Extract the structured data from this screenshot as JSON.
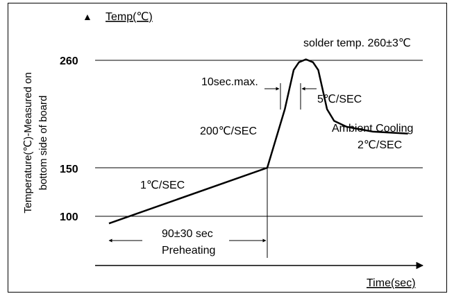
{
  "chart_data": {
    "type": "line",
    "title": "",
    "y_axis": {
      "label": "Temp(℃)",
      "side_label_line1": "Temperature(℃)-Measured on",
      "side_label_line2": "bottom side of board",
      "ticks": [
        100,
        150,
        260
      ]
    },
    "x_axis": {
      "label": "Time(sec)"
    },
    "annotations": {
      "solder_temp": "solder temp. 260±3℃",
      "peak_duration": "10sec.max.",
      "ramp_up": "200℃/SEC",
      "ramp_down": "5℃/SEC",
      "cooling_line1": "Ambient Cooling",
      "cooling_line2": "2℃/SEC",
      "preheat_rate": "1℃/SEC",
      "preheat_time": "90±30 sec",
      "preheat_label": "Preheating"
    },
    "series": [
      {
        "points": [
          {
            "t": 0,
            "temp": 93
          },
          {
            "t": 90,
            "temp": 150
          },
          {
            "t": 100,
            "temp": 210
          },
          {
            "t": 105,
            "temp": 250
          },
          {
            "t": 108,
            "temp": 258
          },
          {
            "t": 112,
            "temp": 261
          },
          {
            "t": 116,
            "temp": 258
          },
          {
            "t": 119,
            "temp": 250
          },
          {
            "t": 124,
            "temp": 210
          },
          {
            "t": 128,
            "temp": 198
          },
          {
            "t": 135,
            "temp": 192
          },
          {
            "t": 150,
            "temp": 187
          },
          {
            "t": 170,
            "temp": 185
          }
        ]
      }
    ]
  }
}
